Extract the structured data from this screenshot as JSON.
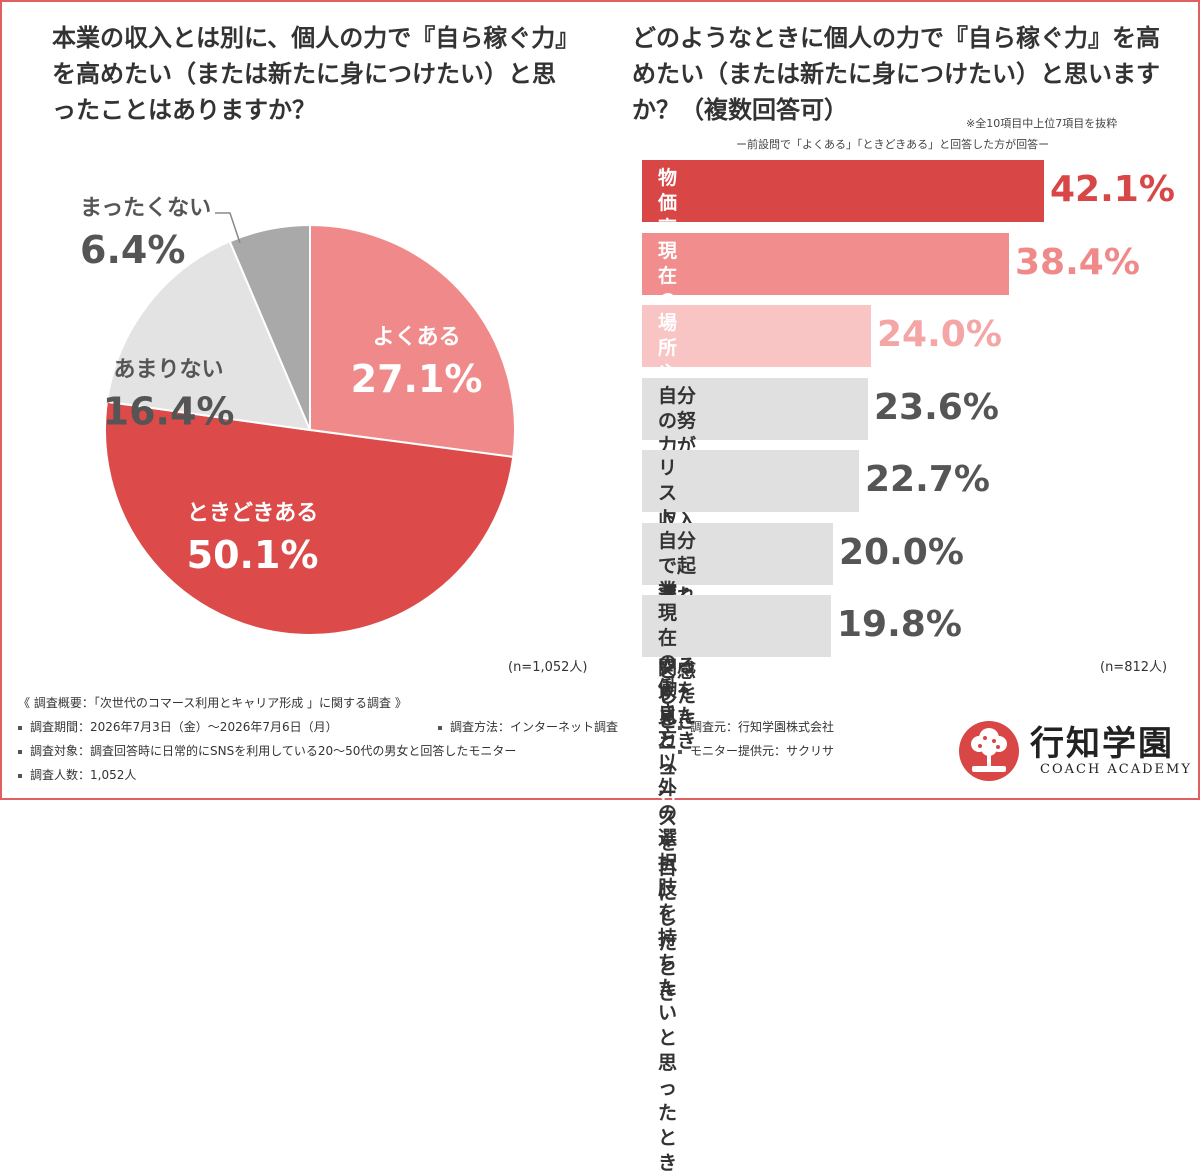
{
  "left": {
    "title": "本業の収入とは別に、個人の力で『自ら稼ぐ力』を高めたい（または新たに身につけたい）と思ったことはありますか？",
    "n": "(n=1,052人)"
  },
  "right": {
    "title": "どのようなときに個人の力で『自ら稼ぐ力』を高めたい（または新たに身につけたい）と思いますか？（複数回答可）",
    "note1": "※全10項目中上位7項目を抜粋",
    "note2": "ー前設問で「よくある」「ときどきある」と回答した方が回答ー",
    "n": "(n=812人)"
  },
  "chart_data": [
    {
      "type": "pie",
      "start_angle_deg": 0,
      "direction": "clockwise",
      "slices": [
        {
          "label": "よくある",
          "value": 27.1,
          "display": "27.1%",
          "color": "#f08a8a"
        },
        {
          "label": "ときどきある",
          "value": 50.1,
          "display": "50.1%",
          "color": "#dc4a4a"
        },
        {
          "label": "あまりない",
          "value": 16.4,
          "display": "16.4%",
          "color": "#e3e3e3"
        },
        {
          "label": "まったくない",
          "value": 6.4,
          "display": "6.4%",
          "color": "#a9a9a9"
        }
      ]
    },
    {
      "type": "bar",
      "orientation": "horizontal",
      "xlim": [
        0,
        45
      ],
      "categories": [
        "物価高や収入減少など、経済的な\n不安を煽るニュースを目にしたとき",
        "現在の仕事や業界の先行きに\n不安を感じたとき",
        "場所や時間に縛られず、\n自由に働きたいと思ったとき",
        "自分の努力が直接、収入に\n反映されていないと感じたとき",
        "リストラや減給に関する\nニュースを目にしたとき",
        "自分で起業・独立している\n人を見たとき",
        "現在の働き方以外の選択肢\nを持ちたいと思ったとき"
      ],
      "values": [
        42.1,
        38.4,
        24.0,
        23.6,
        22.7,
        20.0,
        19.8
      ],
      "display": [
        "42.1%",
        "38.4%",
        "24.0%",
        "23.6%",
        "22.7%",
        "20.0%",
        "19.8%"
      ],
      "colors": [
        "#d94646",
        "#f18d8d",
        "#f8c4c4",
        "#e0e0e0",
        "#e0e0e0",
        "#e0e0e0",
        "#e0e0e0"
      ],
      "label_colors": [
        "#ffffff",
        "#ffffff",
        "#ffffff",
        "#333333",
        "#333333",
        "#333333",
        "#333333"
      ],
      "value_colors": [
        "#d94646",
        "#f08a8a",
        "#f4a5a5",
        "#555555",
        "#555555",
        "#555555",
        "#555555"
      ]
    }
  ],
  "footer": {
    "heading": "《 調査概要：「次世代のコマース利用とキャリア形成 」に関する調査 》",
    "period": "調査期間：2026年7月3日（金）〜2026年7月6日（月）",
    "method": "調査方法：インターネット調査",
    "organizer": "調査元：行知学園株式会社",
    "target": "調査対象：調査回答時に日常的にSNSを利用している20〜50代の男女と回答したモニター",
    "provider": "モニター提供元：サクリサ",
    "count": "調査人数：1,052人"
  },
  "logo": {
    "name": "行知学園",
    "sub": "COACH ACADEMY",
    "color": "#d94646"
  }
}
